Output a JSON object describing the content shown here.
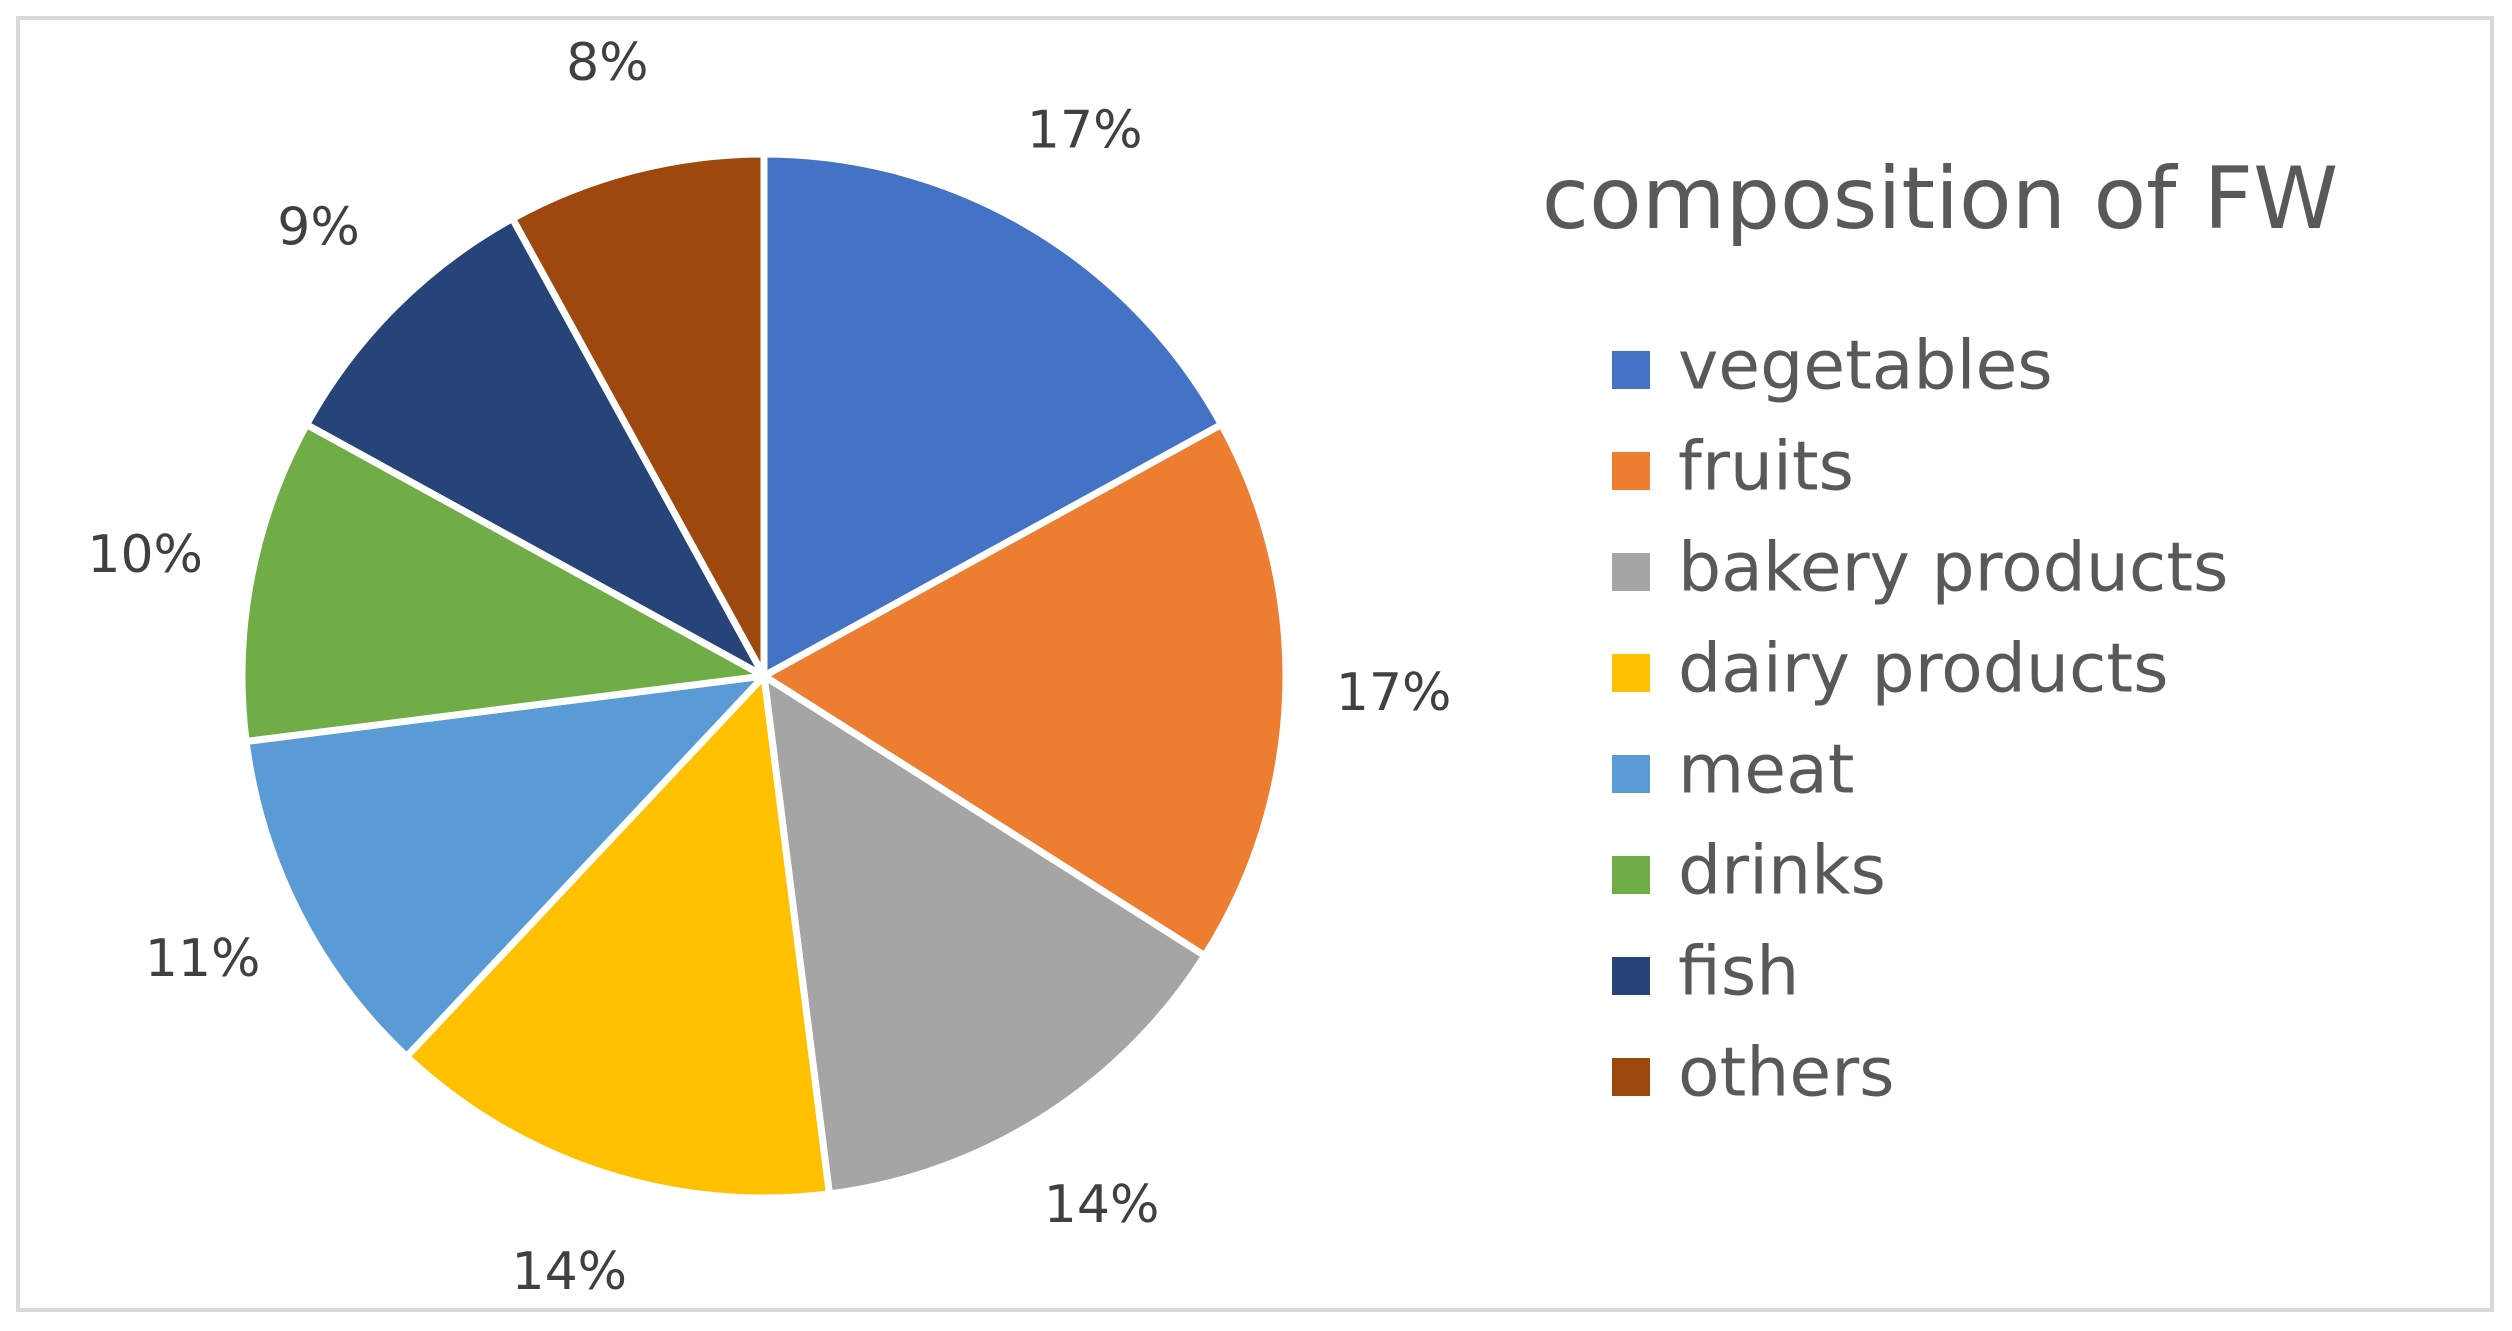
{
  "chart_data": {
    "type": "pie",
    "title": "composition of FW",
    "categories": [
      "vegetables",
      "fruits",
      "bakery products",
      "dairy products",
      "meat",
      "drinks",
      "fish",
      "others"
    ],
    "values": [
      17,
      17,
      14,
      14,
      11,
      10,
      9,
      8
    ],
    "data_labels": [
      "17%",
      "17%",
      "14%",
      "14%",
      "11%",
      "10%",
      "9%",
      "8%"
    ],
    "colors": [
      "#4472C4",
      "#ED7D31",
      "#A5A5A5",
      "#FFC000",
      "#5B9BD5",
      "#70AD47",
      "#264478",
      "#9E480E"
    ],
    "legend_position": "right",
    "start_angle": "top, clockwise"
  }
}
